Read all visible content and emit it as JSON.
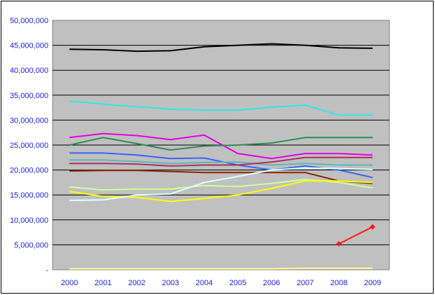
{
  "chart_data": {
    "type": "line",
    "title": "",
    "xlabel": "",
    "ylabel": "",
    "x": [
      "2000",
      "2001",
      "2002",
      "2003",
      "2004",
      "2005",
      "2006",
      "2007",
      "2008",
      "2009"
    ],
    "ylim": [
      0,
      50000000
    ],
    "yticks": [
      0,
      5000000,
      10000000,
      15000000,
      20000000,
      25000000,
      30000000,
      35000000,
      40000000,
      45000000,
      50000000
    ],
    "ytick_labels": [
      "-",
      "5,000,000",
      "10,000,000",
      "15,000,000",
      "20,000,000",
      "25,000,000",
      "30,000,000",
      "35,000,000",
      "40,000,000",
      "45,000,000",
      "50,000,000"
    ],
    "grid": true,
    "legend": "none",
    "plot_background": "#c0c0c0",
    "series": [
      {
        "color": "#000000",
        "values": [
          44200000,
          44100000,
          43800000,
          43900000,
          44700000,
          45000000,
          45300000,
          45000000,
          44500000,
          44400000
        ]
      },
      {
        "color": "#33e6e6",
        "values": [
          33800000,
          33200000,
          32700000,
          32200000,
          32000000,
          32000000,
          32600000,
          33000000,
          31000000,
          31000000
        ]
      },
      {
        "color": "#e600e6",
        "values": [
          26500000,
          27300000,
          26900000,
          26100000,
          27000000,
          23300000,
          22300000,
          23300000,
          23300000,
          23000000
        ]
      },
      {
        "color": "#2e8b57",
        "values": [
          25000000,
          26500000,
          25300000,
          24000000,
          24800000,
          25000000,
          25400000,
          26500000,
          26500000,
          26500000
        ]
      },
      {
        "color": "#3366ff",
        "values": [
          23400000,
          23400000,
          23000000,
          22300000,
          22400000,
          21000000,
          20000000,
          20800000,
          20000000,
          18500000
        ]
      },
      {
        "color": "#5cb8b8",
        "values": [
          22000000,
          22000000,
          21700000,
          21300000,
          21500000,
          21600000,
          21000000,
          21300000,
          21000000,
          21000000
        ]
      },
      {
        "color": "#b03060",
        "values": [
          21300000,
          21300000,
          21200000,
          20800000,
          21000000,
          21000000,
          21600000,
          22500000,
          22500000,
          22500000
        ]
      },
      {
        "color": "#8b2500",
        "values": [
          19800000,
          19900000,
          19900000,
          19700000,
          19500000,
          19500000,
          19500000,
          19500000,
          17800000,
          17300000
        ]
      },
      {
        "color": "#ccff99",
        "values": [
          16600000,
          16000000,
          16200000,
          16200000,
          16900000,
          16700000,
          17300000,
          18100000,
          17500000,
          16400000
        ]
      },
      {
        "color": "#ffff00",
        "values": [
          15700000,
          14700000,
          14500000,
          13700000,
          14300000,
          15000000,
          16300000,
          17800000,
          17800000,
          17500000
        ]
      },
      {
        "color": "#e0ffff",
        "values": [
          13900000,
          14000000,
          15000000,
          15200000,
          17500000,
          18700000,
          20000000,
          20400000,
          20300000,
          20100000
        ]
      },
      {
        "color": "#ff1a1a",
        "marker": "diamond",
        "values": [
          null,
          null,
          null,
          null,
          null,
          null,
          null,
          null,
          5200000,
          8600000
        ]
      },
      {
        "color": "#ffff99",
        "values": [
          200000,
          200000,
          200000,
          200000,
          200000,
          200000,
          200000,
          300000,
          300000,
          300000
        ]
      }
    ]
  }
}
